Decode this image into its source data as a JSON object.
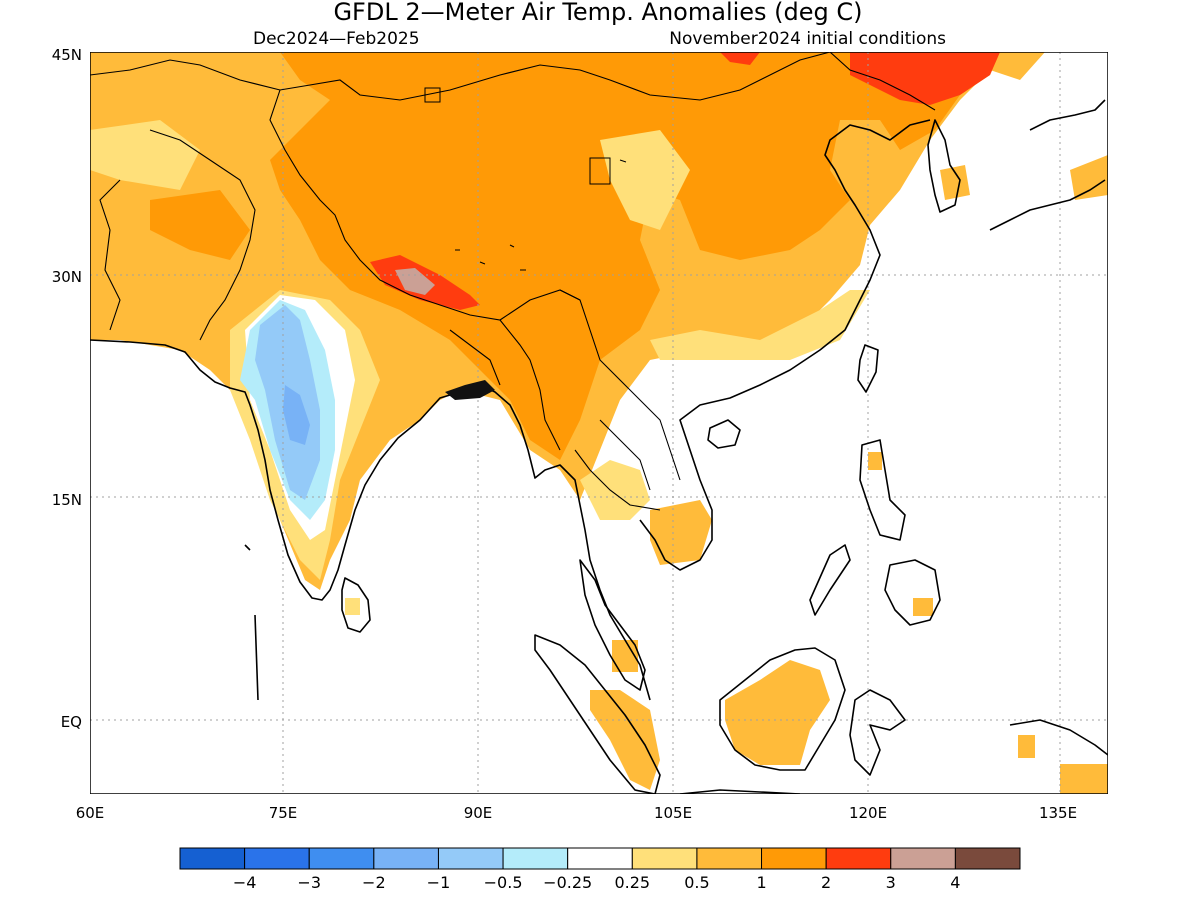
{
  "title": "GFDL 2—Meter Air Temp. Anomalies (deg C)",
  "subtitle_left": "Dec2024—Feb2025",
  "subtitle_right": "November2024 initial conditions",
  "lat_labels": [
    "45N",
    "30N",
    "15N",
    "EQ"
  ],
  "lon_labels": [
    "60E",
    "75E",
    "90E",
    "105E",
    "120E",
    "135E"
  ],
  "extent": {
    "lon_min": 60,
    "lon_max": 140,
    "lat_min": -5,
    "lat_max": 45
  },
  "legend": {
    "colors": [
      "#1560d2",
      "#2a73ea",
      "#3f8ef0",
      "#78b2f6",
      "#94caf8",
      "#b4ecfa",
      "#ffffff",
      "#ffe07a",
      "#ffbb3a",
      "#ff9a06",
      "#ff3c0f",
      "#cba095",
      "#7a4a3c"
    ],
    "labels": [
      "−4",
      "−3",
      "−2",
      "−1",
      "−0.5",
      "−0.25",
      "0.25",
      "0.5",
      "1",
      "2",
      "3",
      "4"
    ]
  }
}
